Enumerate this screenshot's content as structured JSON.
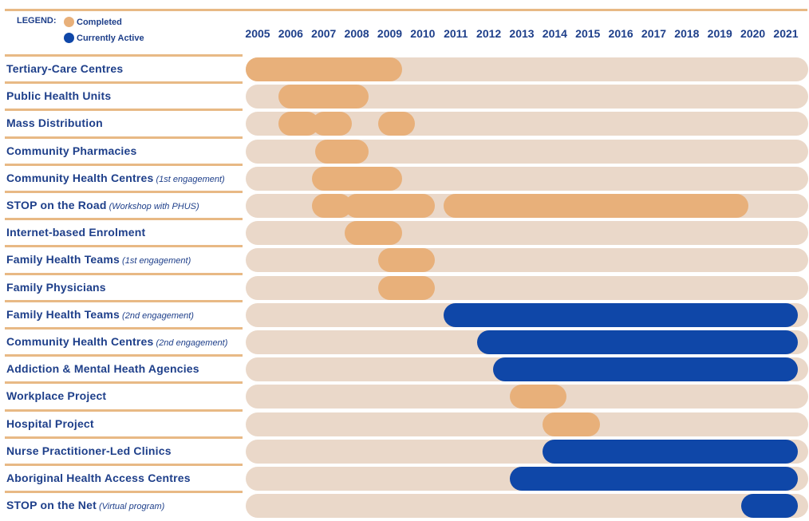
{
  "legend": {
    "title": "LEGEND:",
    "completed_label": "Completed",
    "active_label": "Currently Active",
    "completed_color": "#e8b07a",
    "active_color": "#0f47a8"
  },
  "chart_data": {
    "type": "gantt",
    "years": [
      "2005",
      "2006",
      "2007",
      "2008",
      "2009",
      "2010",
      "2011",
      "2012",
      "2013",
      "2014",
      "2015",
      "2016",
      "2017",
      "2018",
      "2019",
      "2020",
      "2021"
    ],
    "rows": [
      {
        "label": "Tertiary-Care Centres",
        "note": "",
        "segments": [
          {
            "start": 2005.0,
            "end": 2009.0,
            "status": "completed"
          }
        ]
      },
      {
        "label": "Public Health Units",
        "note": "",
        "segments": [
          {
            "start": 2006.0,
            "end": 2008.0,
            "status": "completed"
          }
        ]
      },
      {
        "label": "Mass Distribution",
        "note": "",
        "segments": [
          {
            "start": 2006.0,
            "end": 2006.5,
            "status": "completed"
          },
          {
            "start": 2007.0,
            "end": 2007.5,
            "status": "completed"
          },
          {
            "start": 2009.0,
            "end": 2009.4,
            "status": "completed"
          }
        ]
      },
      {
        "label": "Community Pharmacies",
        "note": "",
        "segments": [
          {
            "start": 2007.1,
            "end": 2008.0,
            "status": "completed"
          }
        ]
      },
      {
        "label": "Community Health Centres",
        "note": "(1st engagement)",
        "segments": [
          {
            "start": 2007.0,
            "end": 2009.0,
            "status": "completed"
          }
        ]
      },
      {
        "label": "STOP on the Road",
        "note": "(Workshop with PHUS)",
        "segments": [
          {
            "start": 2007.0,
            "end": 2007.5,
            "status": "completed"
          },
          {
            "start": 2008.0,
            "end": 2010.0,
            "status": "completed"
          },
          {
            "start": 2011.0,
            "end": 2019.5,
            "status": "completed"
          }
        ]
      },
      {
        "label": "Internet-based Enrolment",
        "note": "",
        "segments": [
          {
            "start": 2008.0,
            "end": 2009.0,
            "status": "completed"
          }
        ]
      },
      {
        "label": "Family Health Teams",
        "note": "(1st engagement)",
        "segments": [
          {
            "start": 2009.0,
            "end": 2010.0,
            "status": "completed"
          }
        ]
      },
      {
        "label": "Family Physicians",
        "note": "",
        "segments": [
          {
            "start": 2009.0,
            "end": 2010.0,
            "status": "completed"
          }
        ]
      },
      {
        "label": "Family Health Teams",
        "note": "(2nd engagement)",
        "segments": [
          {
            "start": 2011.0,
            "end": 2021.0,
            "status": "active"
          }
        ]
      },
      {
        "label": "Community Health Centres",
        "note": "(2nd engagement)",
        "segments": [
          {
            "start": 2012.0,
            "end": 2021.0,
            "status": "active"
          }
        ]
      },
      {
        "label": "Addiction & Mental Heath Agencies",
        "note": "",
        "segments": [
          {
            "start": 2012.5,
            "end": 2021.0,
            "status": "active"
          }
        ]
      },
      {
        "label": "Workplace Project",
        "note": "",
        "segments": [
          {
            "start": 2013.0,
            "end": 2014.0,
            "status": "completed"
          }
        ]
      },
      {
        "label": "Hospital Project",
        "note": "",
        "segments": [
          {
            "start": 2014.0,
            "end": 2015.0,
            "status": "completed"
          }
        ]
      },
      {
        "label": "Nurse Practitioner-Led Clinics",
        "note": "",
        "segments": [
          {
            "start": 2014.0,
            "end": 2021.0,
            "status": "active"
          }
        ]
      },
      {
        "label": "Aboriginal Health Access Centres",
        "note": "",
        "segments": [
          {
            "start": 2013.0,
            "end": 2021.0,
            "status": "active"
          }
        ]
      },
      {
        "label": "STOP on the Net",
        "note": "(Virtual program)",
        "segments": [
          {
            "start": 2020.0,
            "end": 2021.0,
            "status": "active"
          }
        ]
      }
    ]
  }
}
